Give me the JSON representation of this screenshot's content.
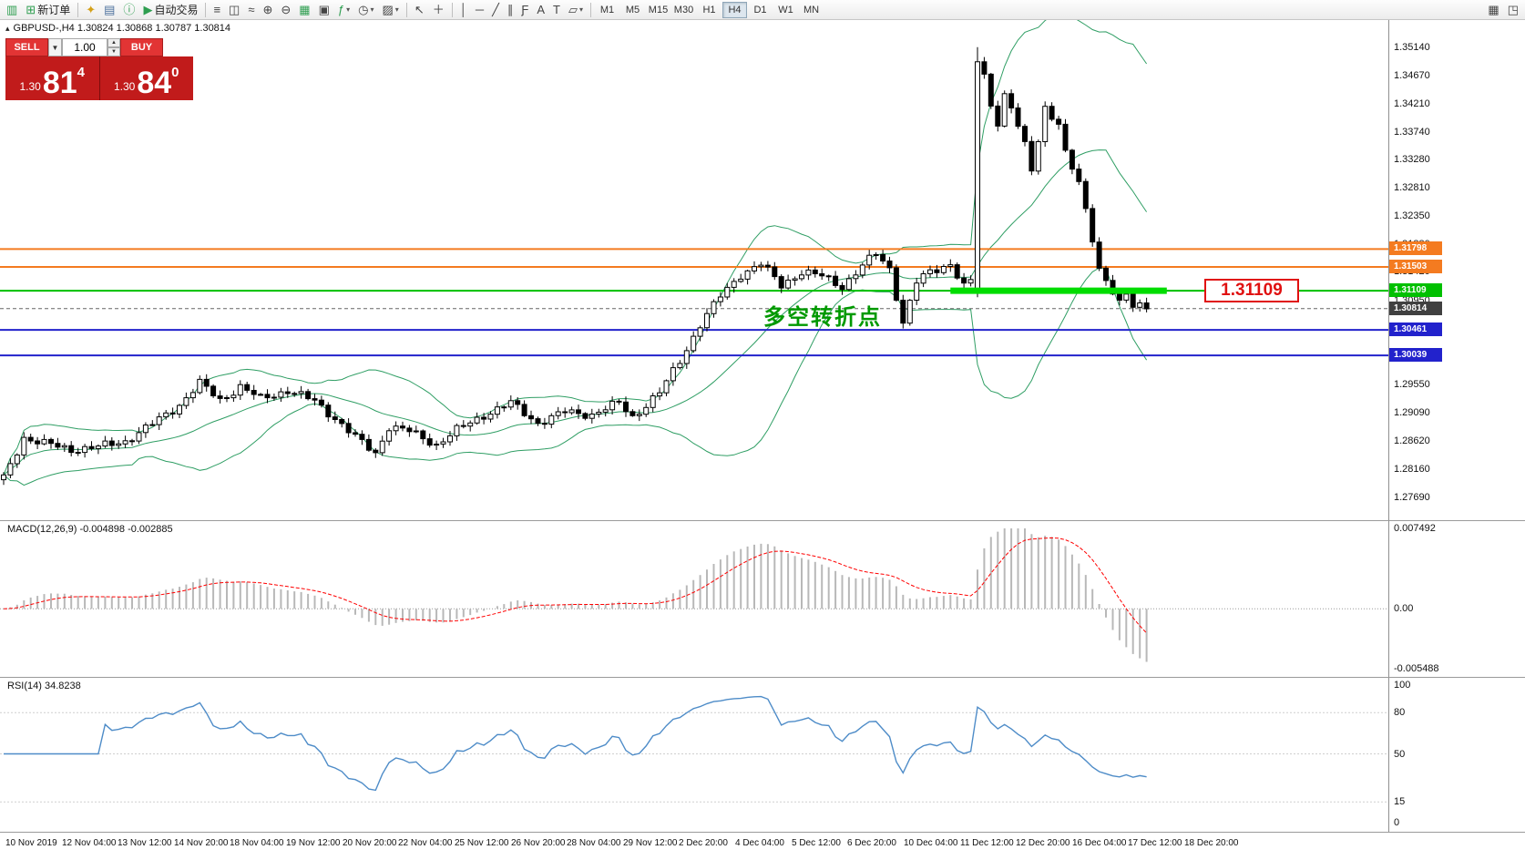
{
  "toolbar": {
    "new_order_label": "新订单",
    "auto_trading_label": "自动交易",
    "timeframes": [
      "M1",
      "M5",
      "M15",
      "M30",
      "H1",
      "H4",
      "D1",
      "W1",
      "MN"
    ],
    "active_timeframe": "H4"
  },
  "chart_header": {
    "marker": "▴",
    "title": "GBPUSD-,H4  1.30824 1.30868 1.30787 1.30814"
  },
  "trade_panel": {
    "sell_label": "SELL",
    "buy_label": "BUY",
    "volume": "1.00",
    "sell_price_prefix": "1.30",
    "sell_price_big": "81",
    "sell_price_sup": "4",
    "buy_price_prefix": "1.30",
    "buy_price_big": "84",
    "buy_price_sup": "0"
  },
  "annotations": {
    "price_label_box": "1.31109",
    "price_box_color": "#e01010",
    "turning_point_text": "多空转折点",
    "turning_point_color": "#009900"
  },
  "colors": {
    "bull": "#ffffff",
    "bear": "#000000",
    "bollinger": "#2f9e64",
    "orange_line": "#f47b20",
    "green_line": "#00c000",
    "thick_green": "#00dd00",
    "blue_line": "#2222cc",
    "bid_line": "#666666",
    "macd_hist": "#b8b8b8",
    "macd_signal": "#ff0000",
    "rsi_line": "#4e8cc8"
  },
  "price_axis": {
    "labels": [
      "1.35140",
      "1.34670",
      "1.34210",
      "1.33740",
      "1.33280",
      "1.32810",
      "1.32350",
      "1.31880",
      "1.31420",
      "1.30950",
      "1.30490",
      "1.30020",
      "1.29550",
      "1.29090",
      "1.28620",
      "1.28160",
      "1.27690"
    ]
  },
  "levels": [
    {
      "price": 1.31798,
      "label": "1.31798",
      "type": "hline",
      "color": "#f47b20",
      "text_color": "#ffffff"
    },
    {
      "price": 1.31503,
      "label": "1.31503",
      "type": "hline",
      "color": "#f47b20",
      "text_color": "#ffffff"
    },
    {
      "price": 1.31109,
      "label": "1.31109",
      "type": "hline",
      "color": "#00c000",
      "text_color": "#ffffff"
    },
    {
      "price": 1.30814,
      "label": "1.30814",
      "type": "bid",
      "color": "#404040",
      "text_color": "#ffffff"
    },
    {
      "price": 1.30461,
      "label": "1.30461",
      "type": "hline",
      "color": "#2222cc",
      "text_color": "#ffffff"
    },
    {
      "price": 1.30039,
      "label": "1.30039",
      "type": "hline",
      "color": "#2222cc",
      "text_color": "#ffffff"
    }
  ],
  "macd_panel": {
    "label": "MACD(12,26,9) -0.004898 -0.002885",
    "scale_top": "0.007492",
    "scale_zero": "0.00",
    "scale_bottom": "-0.005488",
    "max": 0.007492,
    "min": -0.005488
  },
  "rsi_panel": {
    "label": "RSI(14) 34.8238",
    "scale": [
      "100",
      "80",
      "50",
      "15",
      "0"
    ],
    "levels": [
      80,
      50,
      15
    ]
  },
  "time_axis": [
    "10 Nov 2019",
    "12 Nov 04:00",
    "13 Nov 12:00",
    "14 Nov 20:00",
    "18 Nov 04:00",
    "19 Nov 12:00",
    "20 Nov 20:00",
    "22 Nov 04:00",
    "25 Nov 12:00",
    "26 Nov 20:00",
    "28 Nov 04:00",
    "29 Nov 12:00",
    "2 Dec 20:00",
    "4 Dec 04:00",
    "5 Dec 12:00",
    "6 Dec 20:00",
    "10 Dec 04:00",
    "11 Dec 12:00",
    "12 Dec 20:00",
    "16 Dec 04:00",
    "17 Dec 12:00",
    "18 Dec 20:00"
  ],
  "chart_data": {
    "type": "candlestick",
    "symbol": "GBPUSD-",
    "timeframe": "H4",
    "ohlc_display": {
      "open": "1.30824",
      "high": "1.30868",
      "low": "1.30787",
      "close": "1.30814"
    },
    "candle_count": 170,
    "y_range": [
      1.2731,
      1.3559
    ],
    "close_anchors": [
      [
        0,
        1.28
      ],
      [
        3,
        1.2868
      ],
      [
        6,
        1.2858
      ],
      [
        10,
        1.2848
      ],
      [
        14,
        1.2852
      ],
      [
        18,
        1.2862
      ],
      [
        22,
        1.289
      ],
      [
        26,
        1.2922
      ],
      [
        29,
        1.2958
      ],
      [
        32,
        1.293
      ],
      [
        35,
        1.2952
      ],
      [
        38,
        1.2932
      ],
      [
        42,
        1.2946
      ],
      [
        46,
        1.2928
      ],
      [
        49,
        1.29
      ],
      [
        52,
        1.2868
      ],
      [
        55,
        1.2842
      ],
      [
        57,
        1.2886
      ],
      [
        60,
        1.2878
      ],
      [
        64,
        1.2856
      ],
      [
        67,
        1.288
      ],
      [
        71,
        1.2905
      ],
      [
        75,
        1.2925
      ],
      [
        79,
        1.2892
      ],
      [
        83,
        1.291
      ],
      [
        87,
        1.2906
      ],
      [
        91,
        1.2925
      ],
      [
        93,
        1.2902
      ],
      [
        97,
        1.2942
      ],
      [
        100,
        1.2995
      ],
      [
        103,
        1.3055
      ],
      [
        106,
        1.3102
      ],
      [
        109,
        1.3138
      ],
      [
        112,
        1.3155
      ],
      [
        115,
        1.312
      ],
      [
        118,
        1.3142
      ],
      [
        121,
        1.3135
      ],
      [
        124,
        1.3118
      ],
      [
        127,
        1.3152
      ],
      [
        129,
        1.3172
      ],
      [
        131,
        1.3148
      ],
      [
        133,
        1.3058
      ],
      [
        135,
        1.3125
      ],
      [
        137,
        1.3142
      ],
      [
        140,
        1.3156
      ],
      [
        142,
        1.3118
      ],
      [
        143,
        1.3126
      ],
      [
        144,
        1.349
      ],
      [
        145,
        1.3465
      ],
      [
        146,
        1.342
      ],
      [
        147,
        1.339
      ],
      [
        148,
        1.3435
      ],
      [
        149,
        1.3415
      ],
      [
        151,
        1.335
      ],
      [
        152,
        1.331
      ],
      [
        153,
        1.336
      ],
      [
        154,
        1.3415
      ],
      [
        156,
        1.3388
      ],
      [
        157,
        1.3338
      ],
      [
        159,
        1.3288
      ],
      [
        161,
        1.3198
      ],
      [
        162,
        1.315
      ],
      [
        163,
        1.3128
      ],
      [
        164,
        1.311
      ],
      [
        165,
        1.3094
      ],
      [
        166,
        1.3104
      ],
      [
        167,
        1.3084
      ],
      [
        168,
        1.309
      ],
      [
        169,
        1.30814
      ]
    ],
    "overrides": [
      {
        "i": 144,
        "o": 1.311,
        "h": 1.3514,
        "l": 1.31,
        "c": 1.349
      }
    ],
    "indicators": {
      "bollinger": {
        "period": 20,
        "deviation": 2
      },
      "macd": {
        "fast": 12,
        "slow": 26,
        "signal": 9,
        "current": [
          -0.004898,
          -0.002885
        ]
      },
      "rsi": {
        "period": 14,
        "current": 34.8238
      }
    },
    "hlines": [
      1.31798,
      1.31503,
      1.31109,
      1.30461,
      1.30039
    ],
    "thick_segment": {
      "price": 1.31109,
      "from_index": 140,
      "to_index": 172
    }
  }
}
